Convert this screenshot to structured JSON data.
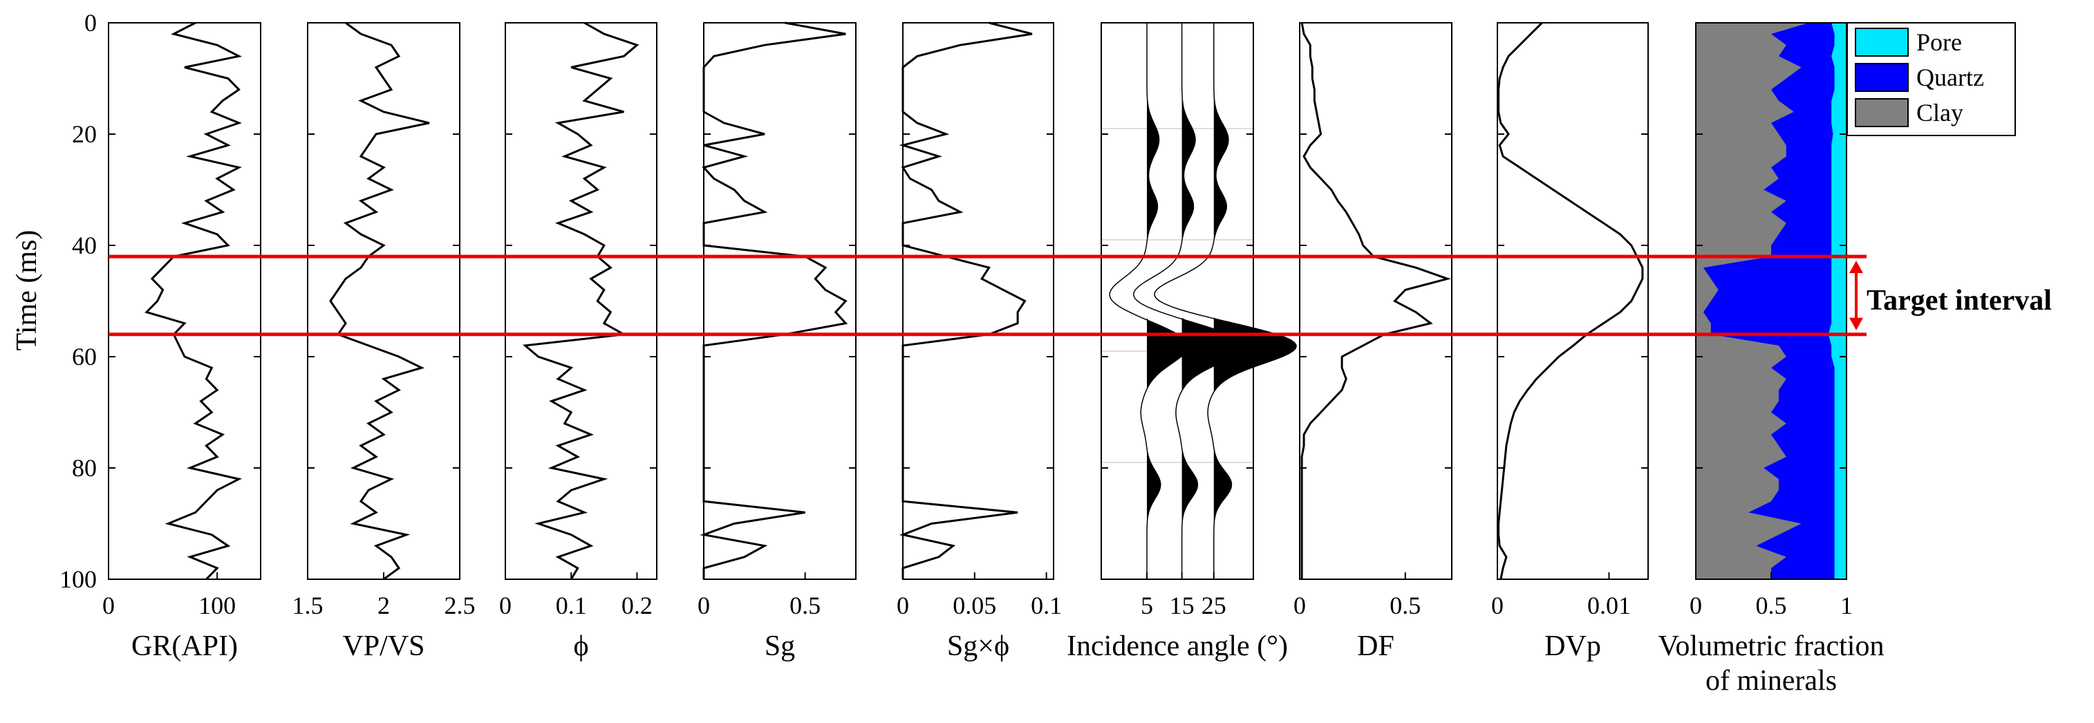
{
  "chart_data": {
    "type": "line",
    "ylabel": "Time (ms)",
    "ylim": [
      0,
      100
    ],
    "yticks": [
      0,
      20,
      40,
      60,
      80,
      100
    ],
    "target_interval": {
      "label": "Target interval",
      "top": 42,
      "bottom": 56,
      "color": "#ee0000"
    },
    "depth": [
      0,
      2,
      4,
      6,
      8,
      10,
      12,
      14,
      16,
      18,
      20,
      22,
      24,
      26,
      28,
      30,
      32,
      34,
      36,
      38,
      40,
      42,
      44,
      46,
      48,
      50,
      52,
      54,
      56,
      58,
      60,
      62,
      64,
      66,
      68,
      70,
      72,
      74,
      76,
      78,
      80,
      82,
      84,
      86,
      88,
      90,
      92,
      94,
      96,
      98,
      100
    ],
    "panels": [
      {
        "id": "gr",
        "xlabel": "GR(API)",
        "xlim": [
          0,
          140
        ],
        "xticks": [
          0,
          100
        ],
        "ticklabels": [
          "0",
          "100"
        ],
        "values": [
          80,
          60,
          100,
          120,
          70,
          110,
          120,
          105,
          95,
          120,
          90,
          110,
          75,
          120,
          100,
          115,
          90,
          105,
          70,
          100,
          110,
          60,
          50,
          40,
          50,
          45,
          35,
          70,
          60,
          65,
          70,
          95,
          90,
          100,
          85,
          95,
          80,
          105,
          90,
          100,
          75,
          120,
          100,
          90,
          80,
          55,
          95,
          110,
          75,
          100,
          90
        ]
      },
      {
        "id": "vpvs",
        "xlabel": "VP/VS",
        "xlim": [
          1.5,
          2.5
        ],
        "xticks": [
          1.5,
          2,
          2.5
        ],
        "ticklabels": [
          "1.5",
          "2",
          "2.5"
        ],
        "values": [
          1.75,
          1.85,
          2.05,
          2.1,
          1.95,
          2.0,
          2.05,
          1.85,
          2.0,
          2.3,
          1.95,
          1.9,
          1.85,
          2.0,
          1.9,
          2.05,
          1.85,
          1.95,
          1.75,
          1.85,
          2.0,
          1.9,
          1.85,
          1.75,
          1.7,
          1.65,
          1.7,
          1.75,
          1.7,
          1.9,
          2.1,
          2.25,
          2.0,
          2.1,
          1.95,
          2.05,
          1.9,
          2.0,
          1.85,
          1.95,
          1.8,
          2.05,
          1.9,
          1.85,
          1.95,
          1.8,
          2.15,
          1.95,
          2.05,
          2.1,
          2.0
        ]
      },
      {
        "id": "phi",
        "xlabel": "ϕ",
        "xlim": [
          0,
          0.23
        ],
        "xticks": [
          0,
          0.1,
          0.2
        ],
        "ticklabels": [
          "0",
          "0.1",
          "0.2"
        ],
        "values": [
          0.12,
          0.15,
          0.2,
          0.18,
          0.1,
          0.16,
          0.14,
          0.12,
          0.18,
          0.08,
          0.11,
          0.13,
          0.09,
          0.15,
          0.12,
          0.14,
          0.1,
          0.13,
          0.08,
          0.12,
          0.15,
          0.14,
          0.16,
          0.13,
          0.15,
          0.14,
          0.16,
          0.15,
          0.18,
          0.03,
          0.05,
          0.1,
          0.08,
          0.12,
          0.07,
          0.1,
          0.09,
          0.13,
          0.08,
          0.11,
          0.07,
          0.15,
          0.1,
          0.08,
          0.12,
          0.05,
          0.1,
          0.13,
          0.08,
          0.11,
          0.1
        ]
      },
      {
        "id": "sg",
        "xlabel": "Sg",
        "xlim": [
          0,
          0.75
        ],
        "xticks": [
          0,
          0.5
        ],
        "ticklabels": [
          "0",
          "0.5"
        ],
        "values": [
          0.4,
          0.7,
          0.3,
          0.05,
          0,
          0,
          0,
          0,
          0,
          0.1,
          0.3,
          0,
          0.2,
          0,
          0.05,
          0.15,
          0.2,
          0.3,
          0,
          0,
          0,
          0.5,
          0.6,
          0.55,
          0.6,
          0.7,
          0.65,
          0.7,
          0.4,
          0,
          0,
          0,
          0,
          0,
          0,
          0,
          0,
          0,
          0,
          0,
          0,
          0,
          0,
          0,
          0.5,
          0.15,
          0,
          0.3,
          0.2,
          0,
          0
        ]
      },
      {
        "id": "sgphi",
        "xlabel": "Sg×ϕ",
        "xlim": [
          0,
          0.105
        ],
        "xticks": [
          0,
          0.05,
          0.1
        ],
        "ticklabels": [
          "0",
          "0.05",
          "0.1"
        ],
        "values": [
          0.06,
          0.09,
          0.04,
          0.01,
          0,
          0,
          0,
          0,
          0,
          0.01,
          0.03,
          0,
          0.025,
          0,
          0.005,
          0.02,
          0.025,
          0.04,
          0,
          0,
          0,
          0.03,
          0.06,
          0.055,
          0.07,
          0.085,
          0.08,
          0.08,
          0.06,
          0,
          0,
          0,
          0,
          0,
          0,
          0,
          0,
          0,
          0,
          0,
          0,
          0,
          0,
          0,
          0.08,
          0.02,
          0,
          0.035,
          0.025,
          0,
          0
        ]
      },
      {
        "id": "seis",
        "xlabel": "Incidence angle (°)",
        "xticks": [
          5,
          15,
          25
        ],
        "ticklabels": [
          "5",
          "15",
          "25"
        ]
      },
      {
        "id": "df",
        "xlabel": "DF",
        "xlim": [
          0,
          0.72
        ],
        "xticks": [
          0,
          0.5
        ],
        "ticklabels": [
          "0",
          "0.5"
        ],
        "values": [
          0.01,
          0.02,
          0.05,
          0.05,
          0.06,
          0.06,
          0.07,
          0.07,
          0.08,
          0.09,
          0.1,
          0.05,
          0.02,
          0.05,
          0.1,
          0.15,
          0.18,
          0.22,
          0.25,
          0.28,
          0.3,
          0.35,
          0.55,
          0.7,
          0.5,
          0.45,
          0.55,
          0.62,
          0.4,
          0.3,
          0.2,
          0.2,
          0.22,
          0.2,
          0.15,
          0.1,
          0.05,
          0.02,
          0.02,
          0.01,
          0.01,
          0.01,
          0.01,
          0.01,
          0.01,
          0.01,
          0.01,
          0.01,
          0.01,
          0.01,
          0.01
        ]
      },
      {
        "id": "dvp",
        "xlabel": "DVp",
        "xlim": [
          0,
          0.0135
        ],
        "xticks": [
          0,
          0.01
        ],
        "ticklabels": [
          "0",
          "0.01"
        ],
        "values": [
          0.004,
          0.003,
          0.002,
          0.001,
          0.0005,
          0.0002,
          0.0001,
          0.0001,
          0.0001,
          0.0003,
          0.001,
          0.0002,
          0.0005,
          0.002,
          0.0035,
          0.005,
          0.0065,
          0.008,
          0.0095,
          0.011,
          0.012,
          0.0125,
          0.013,
          0.013,
          0.0125,
          0.012,
          0.011,
          0.0095,
          0.008,
          0.0068,
          0.0055,
          0.0045,
          0.0035,
          0.0027,
          0.002,
          0.0015,
          0.0012,
          0.001,
          0.0008,
          0.0007,
          0.0006,
          0.0005,
          0.0004,
          0.0003,
          0.0002,
          0.0001,
          0.0001,
          0.0002,
          0.0008,
          0.0005,
          0.0003
        ]
      },
      {
        "id": "minerals",
        "xlabel": "Volumetric fraction",
        "xlabel2": "of minerals",
        "xlim": [
          0,
          1
        ],
        "xticks": [
          0,
          0.5,
          1
        ],
        "ticklabels": [
          "0",
          "0.5",
          "1"
        ],
        "clay": [
          0.75,
          0.5,
          0.6,
          0.55,
          0.7,
          0.6,
          0.5,
          0.55,
          0.65,
          0.5,
          0.55,
          0.6,
          0.6,
          0.5,
          0.55,
          0.45,
          0.6,
          0.5,
          0.6,
          0.55,
          0.5,
          0.5,
          0.05,
          0.1,
          0.15,
          0.1,
          0.05,
          0.1,
          0.1,
          0.55,
          0.6,
          0.5,
          0.6,
          0.55,
          0.55,
          0.5,
          0.6,
          0.5,
          0.55,
          0.6,
          0.45,
          0.55,
          0.55,
          0.5,
          0.35,
          0.7,
          0.55,
          0.4,
          0.6,
          0.5,
          0.5
        ],
        "quartz": [
          0.15,
          0.42,
          0.32,
          0.35,
          0.22,
          0.32,
          0.42,
          0.35,
          0.25,
          0.4,
          0.36,
          0.3,
          0.3,
          0.4,
          0.35,
          0.45,
          0.3,
          0.4,
          0.3,
          0.35,
          0.4,
          0.4,
          0.85,
          0.8,
          0.75,
          0.8,
          0.85,
          0.8,
          0.78,
          0.35,
          0.3,
          0.42,
          0.32,
          0.37,
          0.37,
          0.42,
          0.32,
          0.42,
          0.37,
          0.32,
          0.47,
          0.37,
          0.37,
          0.42,
          0.57,
          0.22,
          0.37,
          0.52,
          0.32,
          0.42,
          0.42
        ]
      }
    ],
    "legend": [
      {
        "name": "Pore",
        "color": "#00e6ff"
      },
      {
        "name": "Quartz",
        "color": "#0000ff"
      },
      {
        "name": "Clay",
        "color": "#808080"
      }
    ],
    "legend_position": "top-right"
  }
}
